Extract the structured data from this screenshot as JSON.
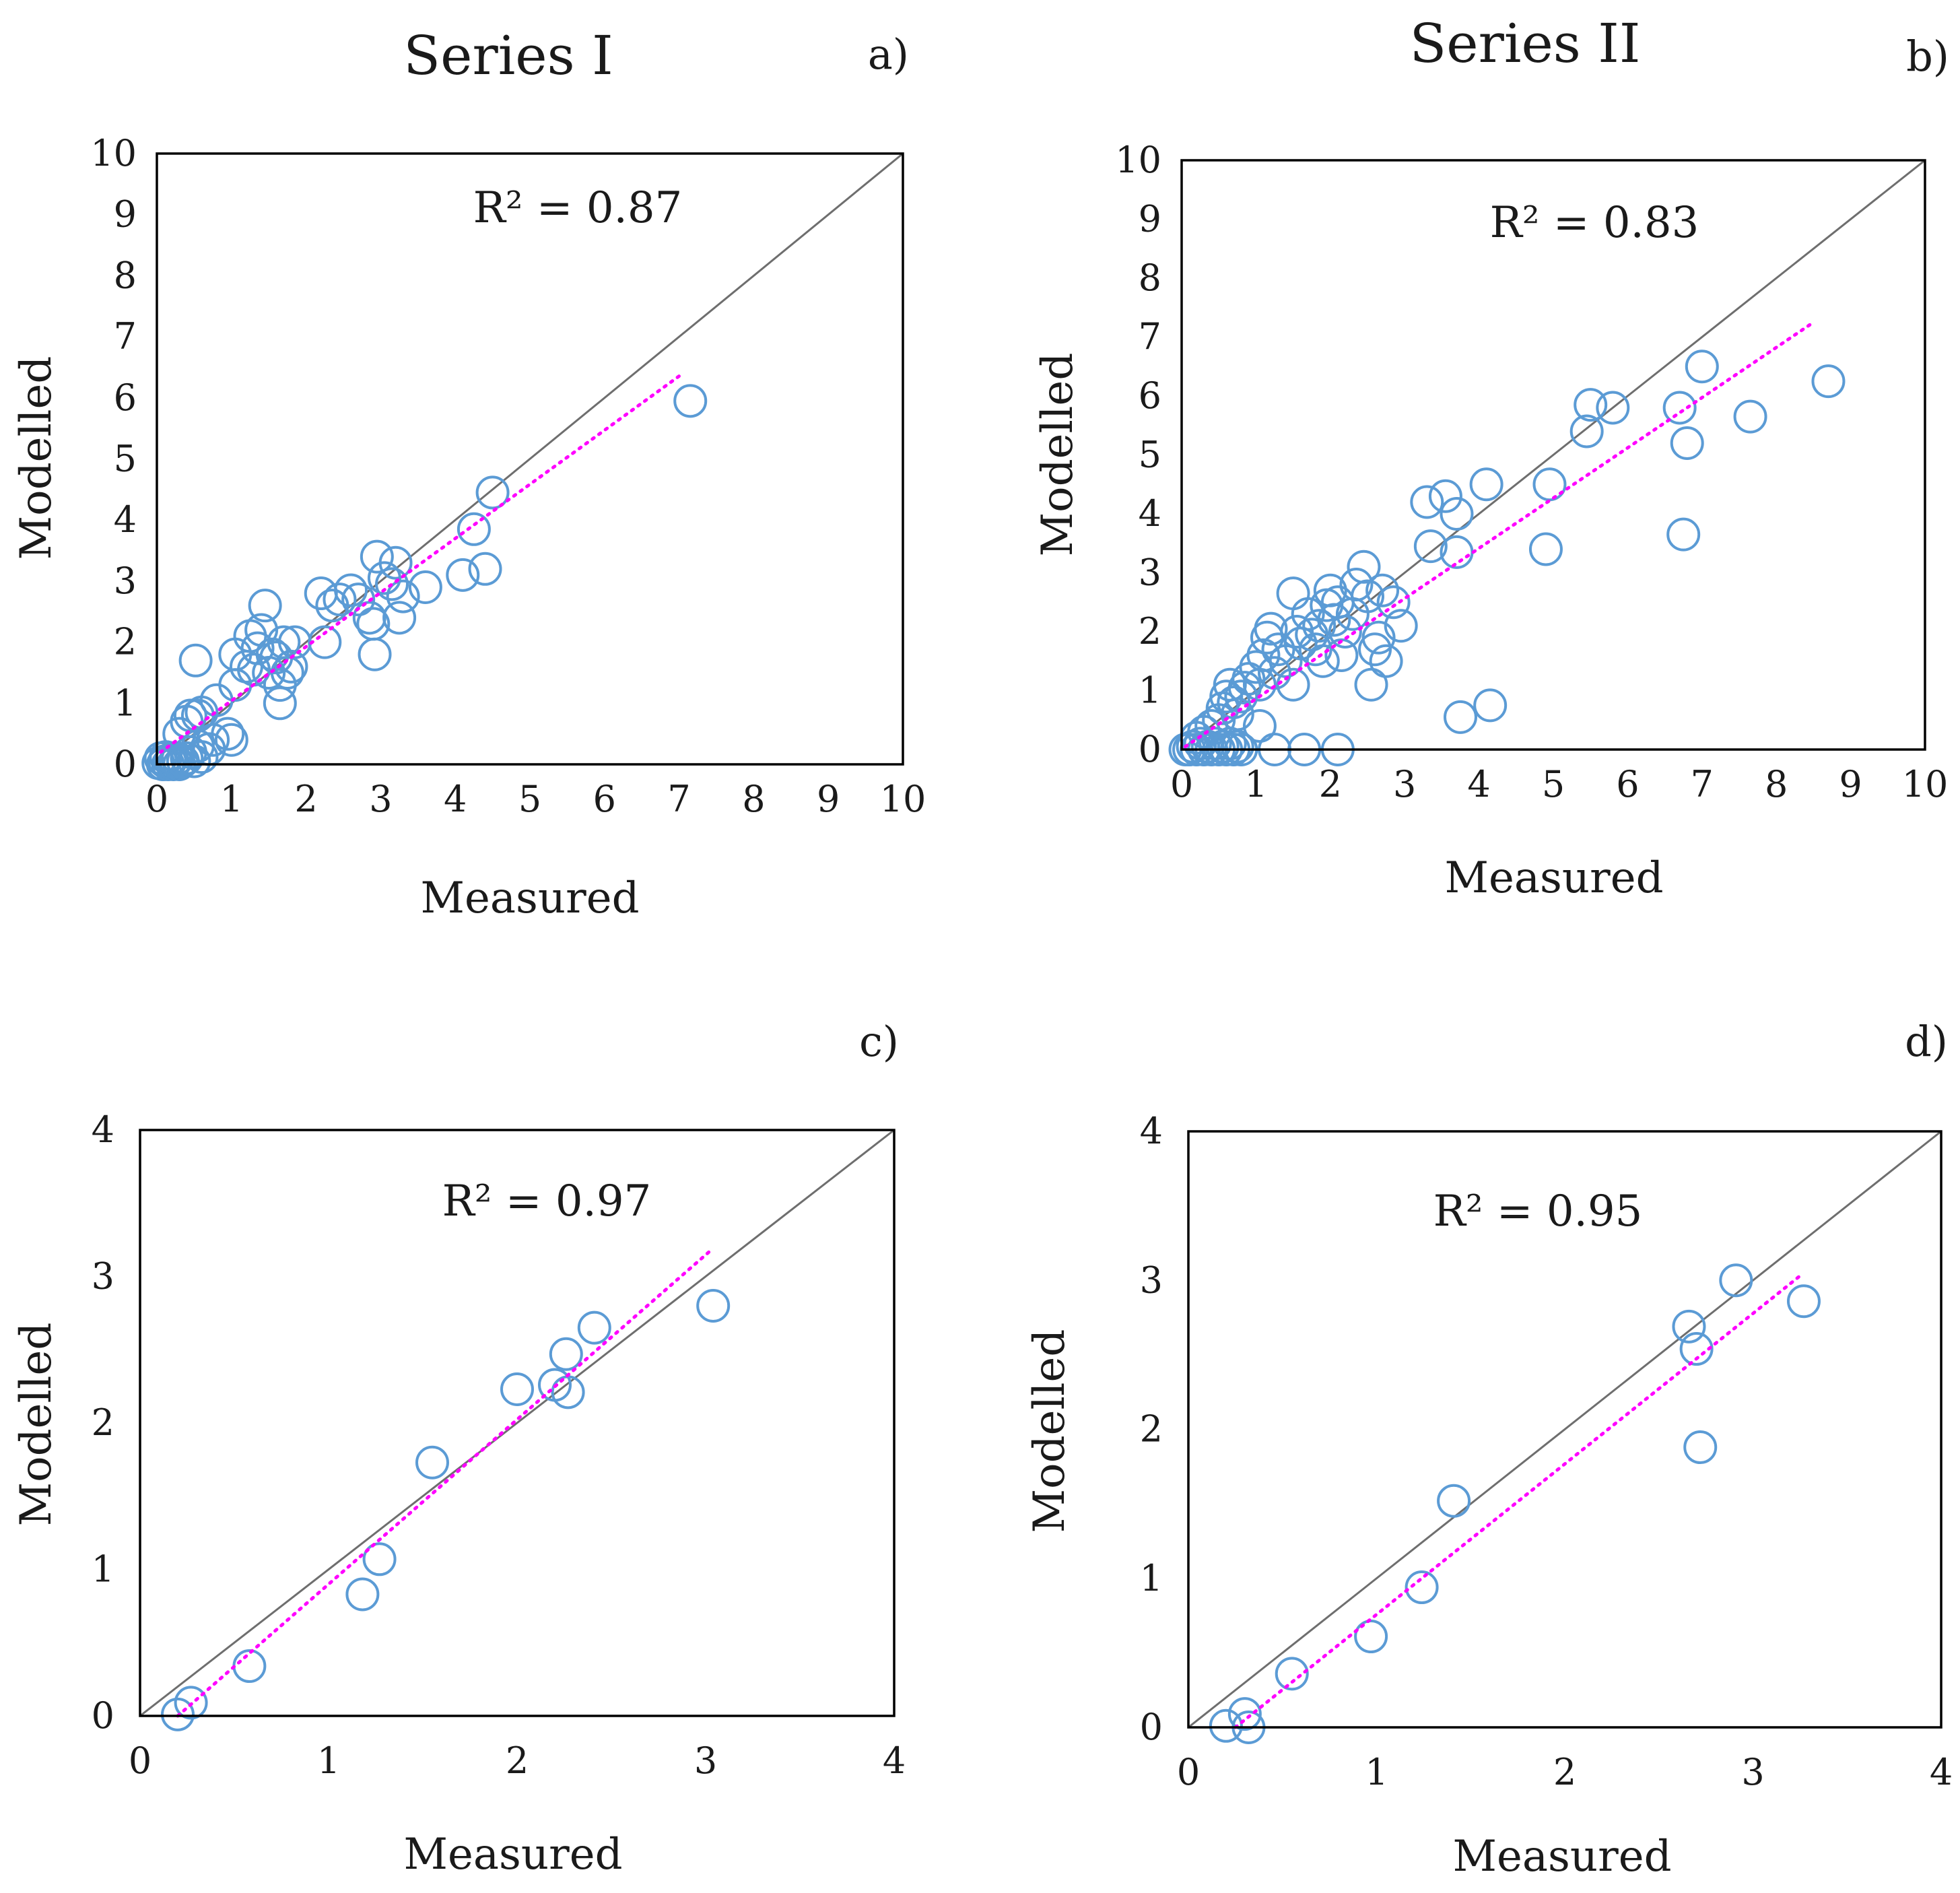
{
  "series_titles": [
    "Series I",
    "Series II"
  ],
  "colors": {
    "marker": "#5b9bd5",
    "trend": "#ff00ff",
    "identity": "#6e6e6e",
    "frame": "#000000"
  },
  "chart_data": [
    {
      "type": "scatter",
      "panel": "a)",
      "series_title": "Series I",
      "xlabel": "Measured",
      "ylabel": "Modelled",
      "annotation": "R² = 0.87",
      "xlim": [
        0,
        10
      ],
      "ylim": [
        0,
        10
      ],
      "ticks": [
        0,
        1,
        2,
        3,
        4,
        5,
        6,
        7,
        8,
        9,
        10
      ],
      "identity_line": true,
      "trendline": {
        "x": [
          0.05,
          7.05
        ],
        "y": [
          0.2,
          6.4
        ]
      },
      "points": [
        [
          0.02,
          0.02
        ],
        [
          0.05,
          0.1
        ],
        [
          0.08,
          0
        ],
        [
          0.1,
          0.05
        ],
        [
          0.12,
          0.12
        ],
        [
          0.15,
          0
        ],
        [
          0.18,
          0.05
        ],
        [
          0.2,
          0.1
        ],
        [
          0.22,
          0
        ],
        [
          0.25,
          0.05
        ],
        [
          0.28,
          0.1
        ],
        [
          0.3,
          0
        ],
        [
          0.35,
          0.05
        ],
        [
          0.4,
          0.1
        ],
        [
          0.45,
          0.2
        ],
        [
          0.5,
          0.05
        ],
        [
          0.55,
          0.3
        ],
        [
          0.6,
          0.12
        ],
        [
          0.7,
          0.25
        ],
        [
          0.3,
          0.5
        ],
        [
          0.4,
          0.7
        ],
        [
          0.45,
          0.8
        ],
        [
          0.55,
          0.8
        ],
        [
          0.6,
          0.85
        ],
        [
          0.75,
          0.4
        ],
        [
          0.8,
          1.05
        ],
        [
          0.95,
          0.5
        ],
        [
          1.0,
          0.4
        ],
        [
          1.05,
          1.3
        ],
        [
          1.05,
          1.8
        ],
        [
          0.52,
          1.7
        ],
        [
          1.2,
          1.6
        ],
        [
          1.25,
          2.1
        ],
        [
          1.3,
          1.55
        ],
        [
          1.35,
          1.9
        ],
        [
          1.4,
          2.2
        ],
        [
          1.45,
          2.6
        ],
        [
          1.5,
          1.5
        ],
        [
          1.55,
          1.8
        ],
        [
          1.6,
          1.75
        ],
        [
          1.65,
          1.3
        ],
        [
          1.65,
          1.0
        ],
        [
          1.7,
          2.0
        ],
        [
          1.75,
          1.5
        ],
        [
          1.8,
          1.6
        ],
        [
          1.85,
          2.0
        ],
        [
          2.2,
          2.8
        ],
        [
          2.25,
          2.0
        ],
        [
          2.35,
          2.6
        ],
        [
          2.45,
          2.7
        ],
        [
          2.6,
          2.85
        ],
        [
          2.7,
          2.7
        ],
        [
          2.85,
          2.4
        ],
        [
          2.9,
          2.3
        ],
        [
          2.92,
          1.8
        ],
        [
          2.95,
          3.4
        ],
        [
          3.05,
          3.05
        ],
        [
          3.15,
          2.95
        ],
        [
          3.2,
          3.3
        ],
        [
          3.25,
          2.4
        ],
        [
          3.3,
          2.75
        ],
        [
          3.6,
          2.9
        ],
        [
          4.1,
          3.1
        ],
        [
          4.25,
          3.85
        ],
        [
          4.4,
          3.2
        ],
        [
          4.5,
          4.45
        ],
        [
          7.15,
          5.95
        ]
      ]
    },
    {
      "type": "scatter",
      "panel": "b)",
      "series_title": "Series II",
      "xlabel": "Measured",
      "ylabel": "Modelled",
      "annotation": "R² = 0.83",
      "xlim": [
        0,
        10
      ],
      "ylim": [
        0,
        10
      ],
      "ticks": [
        0,
        1,
        2,
        3,
        4,
        5,
        6,
        7,
        8,
        9,
        10
      ],
      "identity_line": true,
      "trendline": {
        "x": [
          0.05,
          8.5
        ],
        "y": [
          0.05,
          7.25
        ]
      },
      "points": [
        [
          0.05,
          0
        ],
        [
          0.1,
          0
        ],
        [
          0.15,
          0.05
        ],
        [
          0.2,
          0
        ],
        [
          0.25,
          0.1
        ],
        [
          0.3,
          0
        ],
        [
          0.35,
          0.05
        ],
        [
          0.4,
          0
        ],
        [
          0.45,
          0.1
        ],
        [
          0.5,
          0
        ],
        [
          0.55,
          0.05
        ],
        [
          0.6,
          0
        ],
        [
          0.65,
          0.1
        ],
        [
          0.7,
          0
        ],
        [
          0.75,
          0.05
        ],
        [
          0.8,
          0
        ],
        [
          0.2,
          0.2
        ],
        [
          0.3,
          0.3
        ],
        [
          0.4,
          0.4
        ],
        [
          0.5,
          0.5
        ],
        [
          0.55,
          0.7
        ],
        [
          0.6,
          0.9
        ],
        [
          0.65,
          1.1
        ],
        [
          0.7,
          0.8
        ],
        [
          0.75,
          0.6
        ],
        [
          0.8,
          0.9
        ],
        [
          0.85,
          1.05
        ],
        [
          0.9,
          1.2
        ],
        [
          1.0,
          1.4
        ],
        [
          1.05,
          0.4
        ],
        [
          1.05,
          1.1
        ],
        [
          1.1,
          1.6
        ],
        [
          1.15,
          1.9
        ],
        [
          1.2,
          2.05
        ],
        [
          1.25,
          1.3
        ],
        [
          1.3,
          1.7
        ],
        [
          1.4,
          1.5
        ],
        [
          1.5,
          1.1
        ],
        [
          1.5,
          2.65
        ],
        [
          1.55,
          2.0
        ],
        [
          1.6,
          1.8
        ],
        [
          1.7,
          2.3
        ],
        [
          1.75,
          1.95
        ],
        [
          1.8,
          1.7
        ],
        [
          1.85,
          2.1
        ],
        [
          1.9,
          1.5
        ],
        [
          1.95,
          2.45
        ],
        [
          2.0,
          2.7
        ],
        [
          2.05,
          2.2
        ],
        [
          2.1,
          2.5
        ],
        [
          2.15,
          1.6
        ],
        [
          2.2,
          2.0
        ],
        [
          2.3,
          2.3
        ],
        [
          2.35,
          2.8
        ],
        [
          2.45,
          3.1
        ],
        [
          2.5,
          2.6
        ],
        [
          2.55,
          1.1
        ],
        [
          2.6,
          1.7
        ],
        [
          2.65,
          1.9
        ],
        [
          2.7,
          2.7
        ],
        [
          2.75,
          1.5
        ],
        [
          2.85,
          2.5
        ],
        [
          2.95,
          2.1
        ],
        [
          1.25,
          0
        ],
        [
          1.65,
          0
        ],
        [
          2.1,
          0
        ],
        [
          3.3,
          4.2
        ],
        [
          3.35,
          3.45
        ],
        [
          3.55,
          4.3
        ],
        [
          3.7,
          3.35
        ],
        [
          3.7,
          4.0
        ],
        [
          3.75,
          0.55
        ],
        [
          4.1,
          4.5
        ],
        [
          4.15,
          0.75
        ],
        [
          4.9,
          3.4
        ],
        [
          4.95,
          4.5
        ],
        [
          5.45,
          5.4
        ],
        [
          5.5,
          5.85
        ],
        [
          5.8,
          5.8
        ],
        [
          6.7,
          5.8
        ],
        [
          6.75,
          3.65
        ],
        [
          6.8,
          5.2
        ],
        [
          7.0,
          6.5
        ],
        [
          7.65,
          5.65
        ],
        [
          8.7,
          6.25
        ]
      ]
    },
    {
      "type": "scatter",
      "panel": "c)",
      "xlabel": "Measured",
      "ylabel": "Modelled",
      "annotation": "R² = 0.97",
      "xlim": [
        0,
        4
      ],
      "ylim": [
        0,
        4
      ],
      "ticks": [
        0,
        1,
        2,
        3,
        4
      ],
      "identity_line": true,
      "trendline": {
        "x": [
          0.2,
          3.02
        ],
        "y": [
          0.0,
          3.17
        ]
      },
      "points": [
        [
          0.2,
          0.01
        ],
        [
          0.27,
          0.09
        ],
        [
          0.58,
          0.34
        ],
        [
          1.18,
          0.83
        ],
        [
          1.27,
          1.07
        ],
        [
          1.55,
          1.73
        ],
        [
          2.0,
          2.23
        ],
        [
          2.2,
          2.26
        ],
        [
          2.26,
          2.47
        ],
        [
          2.27,
          2.21
        ],
        [
          2.41,
          2.65
        ],
        [
          3.04,
          2.8
        ]
      ]
    },
    {
      "type": "scatter",
      "panel": "d)",
      "xlabel": "Measured",
      "ylabel": "Modelled",
      "annotation": "R² = 0.95",
      "xlim": [
        0,
        4
      ],
      "ylim": [
        0,
        4
      ],
      "ticks": [
        0,
        1,
        2,
        3,
        4
      ],
      "identity_line": true,
      "trendline": {
        "x": [
          0.25,
          3.25
        ],
        "y": [
          0.0,
          3.03
        ]
      },
      "points": [
        [
          0.2,
          0.01
        ],
        [
          0.3,
          0.09
        ],
        [
          0.32,
          0.0
        ],
        [
          0.55,
          0.36
        ],
        [
          0.97,
          0.61
        ],
        [
          1.24,
          0.94
        ],
        [
          1.41,
          1.52
        ],
        [
          2.66,
          2.69
        ],
        [
          2.7,
          2.54
        ],
        [
          2.72,
          1.88
        ],
        [
          2.91,
          3.0
        ],
        [
          3.27,
          2.86
        ]
      ]
    }
  ]
}
